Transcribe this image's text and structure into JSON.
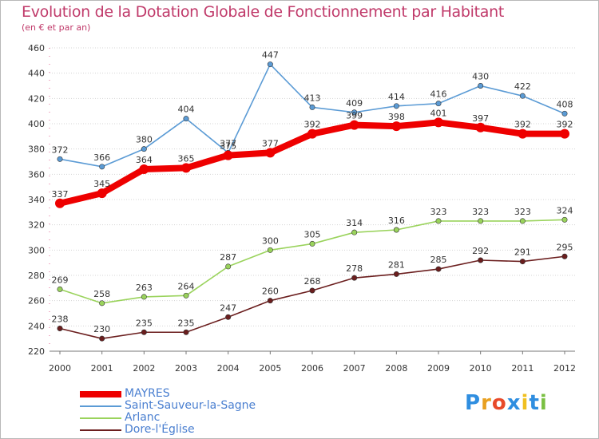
{
  "title": "Evolution de la Dotation Globale de Fonctionnement par Habitant",
  "subtitle": "(en € et par an)",
  "logo": {
    "text": "Proxiti",
    "colors": [
      "#2f8ee0",
      "#e8a020",
      "#e84a2a",
      "#2f8ee0",
      "#f0c020",
      "#2f8ee0",
      "#7ac043"
    ]
  },
  "chart_data": {
    "type": "line",
    "categories": [
      "2000",
      "2001",
      "2002",
      "2003",
      "2004",
      "2005",
      "2006",
      "2007",
      "2008",
      "2009",
      "2010",
      "2011",
      "2012"
    ],
    "ylim": [
      220,
      460
    ],
    "yticks": [
      220,
      240,
      260,
      280,
      300,
      320,
      340,
      360,
      380,
      400,
      420,
      440,
      460
    ],
    "grid": "horizontal",
    "legend_position": "bottom-left",
    "series": [
      {
        "name": "MAYRES",
        "color": "#ee0000",
        "values": [
          337,
          345,
          364,
          365,
          375,
          377,
          392,
          399,
          398,
          401,
          397,
          392,
          392
        ],
        "bold": true
      },
      {
        "name": "Saint-Sauveur-la-Sagne",
        "color": "#5b9bd5",
        "values": [
          372,
          366,
          380,
          404,
          377,
          447,
          413,
          409,
          414,
          416,
          430,
          422,
          408
        ]
      },
      {
        "name": "Arlanc",
        "color": "#9ad35c",
        "values": [
          269,
          258,
          263,
          264,
          287,
          300,
          305,
          314,
          316,
          323,
          323,
          323,
          324
        ]
      },
      {
        "name": "Dore-l'Église",
        "color": "#6b1e1e",
        "values": [
          238,
          230,
          235,
          235,
          247,
          260,
          268,
          278,
          281,
          285,
          292,
          291,
          295
        ]
      }
    ]
  }
}
